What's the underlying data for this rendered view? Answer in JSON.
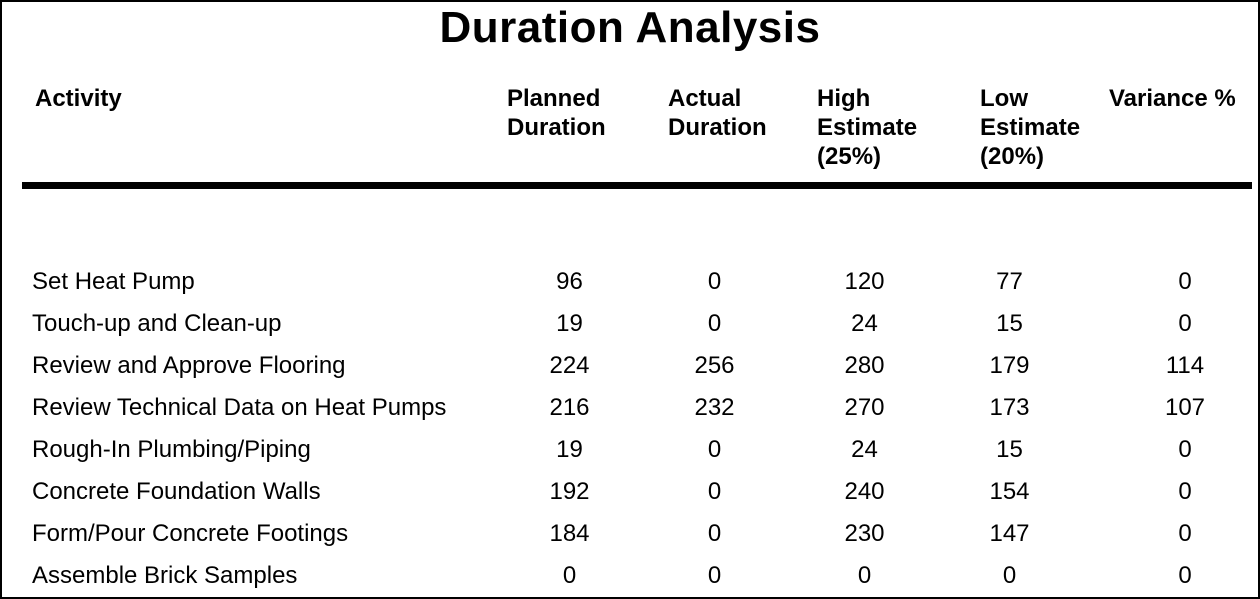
{
  "title": "Duration Analysis",
  "colors": {
    "text": "#000000",
    "background": "#ffffff",
    "rule": "#000000",
    "page_border": "#000000"
  },
  "table": {
    "columns": [
      {
        "key": "activity",
        "lines": [
          "Activity"
        ]
      },
      {
        "key": "planned_duration",
        "lines": [
          "Planned",
          "Duration"
        ]
      },
      {
        "key": "actual_duration",
        "lines": [
          "Actual",
          "Duration"
        ]
      },
      {
        "key": "high_estimate",
        "lines": [
          "High",
          "Estimate",
          "(25%)"
        ]
      },
      {
        "key": "low_estimate",
        "lines": [
          "Low",
          "Estimate",
          "(20%)"
        ]
      },
      {
        "key": "variance_pct",
        "lines": [
          "Variance %"
        ]
      }
    ],
    "rows": [
      [
        "Set Heat Pump",
        "96",
        "0",
        "120",
        "77",
        "0"
      ],
      [
        "Touch-up and Clean-up",
        "19",
        "0",
        "24",
        "15",
        "0"
      ],
      [
        "Review and Approve Flooring",
        "224",
        "256",
        "280",
        "179",
        "114"
      ],
      [
        "Review Technical Data on Heat Pumps",
        "216",
        "232",
        "270",
        "173",
        "107"
      ],
      [
        "Rough-In Plumbing/Piping",
        "19",
        "0",
        "24",
        "15",
        "0"
      ],
      [
        "Concrete Foundation Walls",
        "192",
        "0",
        "240",
        "154",
        "0"
      ],
      [
        "Form/Pour Concrete Footings",
        "184",
        "0",
        "230",
        "147",
        "0"
      ],
      [
        "Assemble Brick Samples",
        "0",
        "0",
        "0",
        "0",
        "0"
      ]
    ]
  }
}
